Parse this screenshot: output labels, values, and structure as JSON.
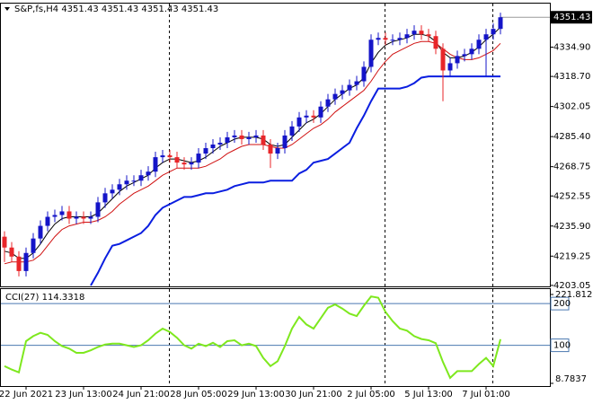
{
  "chart_data": [
    {
      "type": "candlestick",
      "title": "S&P,fs,H4  4351.43 4351.43 4351.43 4351.43",
      "categories": [
        null,
        null,
        null,
        "22 Jun 2021",
        null,
        null,
        null,
        null,
        null,
        null,
        null,
        "23 Jun 13:00",
        null,
        null,
        null,
        null,
        null,
        null,
        null,
        "24 Jun 21:00",
        null,
        null,
        null,
        null,
        null,
        null,
        null,
        "28 Jun 05:00",
        null,
        null,
        null,
        null,
        null,
        null,
        null,
        "29 Jun 13:00",
        null,
        null,
        null,
        null,
        null,
        null,
        null,
        "30 Jun 21:00",
        null,
        null,
        null,
        null,
        null,
        null,
        null,
        "2 Jul 05:00",
        null,
        null,
        null,
        null,
        null,
        null,
        null,
        "5 Jul 13:00",
        null,
        null,
        null,
        null,
        null,
        null,
        null,
        "7 Jul 01:00",
        null,
        null
      ],
      "open": [
        4230,
        4224,
        4219,
        4211,
        4221,
        4229,
        4236,
        4241,
        4242,
        4244,
        4240,
        4241,
        4240,
        4241,
        4249,
        4254,
        4256,
        4259,
        4261,
        4261,
        4264,
        4266,
        4274,
        4275,
        4274,
        4271,
        4270,
        4271,
        4276,
        4279,
        4281,
        4282,
        4285,
        4286,
        4284,
        4285,
        4286,
        4281,
        4276,
        4279,
        4286,
        4291,
        4296,
        4297,
        4296,
        4302,
        4306,
        4309,
        4311,
        4314,
        4316,
        4324,
        4339,
        4340,
        4339,
        4339,
        4340,
        4342,
        4344,
        4342,
        4341,
        4334,
        4322,
        4326,
        4330,
        4331,
        4334,
        4339,
        4342,
        4345
      ],
      "high": [
        4233,
        4227,
        4222,
        4224,
        4232,
        4239,
        4244,
        4245,
        4247,
        4247,
        4244,
        4244,
        4244,
        4252,
        4257,
        4259,
        4262,
        4264,
        4264,
        4267,
        4269,
        4277,
        4278,
        4278,
        4277,
        4274,
        4274,
        4279,
        4282,
        4284,
        4285,
        4288,
        4289,
        4289,
        4288,
        4289,
        4289,
        4284,
        4282,
        4289,
        4294,
        4299,
        4300,
        4300,
        4305,
        4309,
        4312,
        4314,
        4317,
        4319,
        4327,
        4342,
        4343,
        4343,
        4342,
        4343,
        4345,
        4347,
        4347,
        4345,
        4344,
        4337,
        4329,
        4333,
        4334,
        4337,
        4342,
        4345,
        4348,
        4354
      ],
      "low": [
        4216,
        4216,
        4208,
        4208,
        4218,
        4226,
        4233,
        4238,
        4239,
        4237,
        4237,
        4237,
        4237,
        4238,
        4246,
        4251,
        4253,
        4256,
        4258,
        4258,
        4261,
        4263,
        4271,
        4271,
        4268,
        4267,
        4267,
        4268,
        4273,
        4276,
        4278,
        4279,
        4282,
        4281,
        4281,
        4282,
        4278,
        4268,
        4273,
        4276,
        4283,
        4288,
        4293,
        4293,
        4293,
        4299,
        4303,
        4306,
        4308,
        4311,
        4313,
        4321,
        4336,
        4336,
        4336,
        4336,
        4337,
        4339,
        4339,
        4338,
        4331,
        4305,
        4319,
        4323,
        4327,
        4328,
        4331,
        4319,
        4339,
        4342
      ],
      "close": [
        4224,
        4219,
        4211,
        4221,
        4229,
        4236,
        4241,
        4242,
        4244,
        4240,
        4241,
        4240,
        4241,
        4249,
        4254,
        4256,
        4259,
        4261,
        4261,
        4264,
        4266,
        4274,
        4275,
        4274,
        4271,
        4270,
        4271,
        4276,
        4279,
        4281,
        4282,
        4285,
        4286,
        4284,
        4285,
        4286,
        4281,
        4276,
        4279,
        4286,
        4291,
        4296,
        4297,
        4296,
        4302,
        4306,
        4309,
        4311,
        4314,
        4316,
        4324,
        4339,
        4340,
        4339,
        4339,
        4340,
        4342,
        4344,
        4342,
        4341,
        4334,
        4322,
        4326,
        4330,
        4331,
        4334,
        4339,
        4342,
        4345,
        4351.43
      ],
      "up_color": "#1414c8",
      "down_color": "#e8262a",
      "series": [
        {
          "color": "#000000",
          "values": [
            4222,
            4221,
            4218,
            4218,
            4221,
            4226,
            4232,
            4237,
            4240,
            4241,
            4241,
            4241,
            4241,
            4243,
            4247,
            4251,
            4255,
            4258,
            4260,
            4262,
            4264,
            4268,
            4271,
            4273,
            4273,
            4272,
            4271,
            4272,
            4274,
            4277,
            4280,
            4282,
            4284,
            4285,
            4285,
            4285,
            4284,
            4281,
            4280,
            4281,
            4285,
            4289,
            4293,
            4295,
            4298,
            4302,
            4306,
            4309,
            4312,
            4314,
            4318,
            4326,
            4332,
            4336,
            4338,
            4339,
            4340,
            4342,
            4342,
            4341,
            4338,
            4332,
            4329,
            4329,
            4330,
            4332,
            4335,
            4339,
            4342,
            4346
          ]
        },
        {
          "color": "#d01010",
          "values": [
            4215,
            4216,
            4216,
            4216,
            4217,
            4220,
            4225,
            4230,
            4234,
            4236,
            4237,
            4238,
            4238,
            4239,
            4241,
            4244,
            4248,
            4251,
            4254,
            4256,
            4258,
            4261,
            4264,
            4266,
            4268,
            4268,
            4268,
            4268,
            4269,
            4271,
            4273,
            4276,
            4278,
            4280,
            4281,
            4281,
            4281,
            4280,
            4279,
            4279,
            4281,
            4284,
            4287,
            4290,
            4292,
            4295,
            4299,
            4302,
            4305,
            4308,
            4311,
            4316,
            4322,
            4327,
            4331,
            4333,
            4335,
            4337,
            4338,
            4338,
            4337,
            4334,
            4331,
            4329,
            4328,
            4328,
            4329,
            4331,
            4333,
            4337
          ]
        },
        {
          "color": "#0a1ee0",
          "values": [
            null,
            null,
            null,
            null,
            null,
            null,
            null,
            null,
            null,
            null,
            null,
            null,
            4203,
            4210,
            4218,
            4225,
            4226,
            4228,
            4230,
            4232,
            4236,
            4242,
            4246,
            4248,
            4250,
            4252,
            4252,
            4253,
            4254,
            4254,
            4255,
            4256,
            4258,
            4259,
            4260,
            4260,
            4260,
            4261,
            4261,
            4261,
            4261,
            4265,
            4267,
            4271,
            4272,
            4273,
            4276,
            4279,
            4282,
            4290,
            4297,
            4305,
            4312,
            4312,
            4312,
            4312,
            4313,
            4315,
            4318,
            4318.7,
            4318.7,
            4318.7,
            4318.7,
            4318.7,
            4318.7,
            4318.7,
            4318.7,
            4318.7,
            4318.7,
            4318.7
          ]
        }
      ],
      "ylim": [
        4202.5,
        4359
      ],
      "yticks": [
        4351.43,
        {
          "value": 4334.9,
          "label": "4334.90"
        },
        {
          "value": 4318.7,
          "label": "4318.70"
        },
        4302.05,
        {
          "value": 4285.4,
          "label": "4285.40"
        },
        4268.75,
        4252.55,
        {
          "value": 4235.9,
          "label": "4235.90"
        },
        4219.25,
        4203.05
      ]
    },
    {
      "type": "line",
      "title": "CCI(27) 114.3318",
      "color": "#7ee81e",
      "values": [
        50,
        42,
        35,
        110,
        122,
        130,
        125,
        110,
        98,
        92,
        82,
        82,
        88,
        96,
        102,
        104,
        104,
        100,
        96,
        100,
        112,
        128,
        140,
        132,
        118,
        100,
        92,
        104,
        98,
        106,
        96,
        110,
        112,
        100,
        104,
        98,
        70,
        50,
        62,
        98,
        140,
        168,
        150,
        140,
        165,
        190,
        198,
        188,
        176,
        170,
        195,
        217,
        214,
        180,
        158,
        140,
        135,
        122,
        115,
        112,
        105,
        60,
        22,
        38,
        38,
        38,
        55,
        70,
        50,
        114.3318
      ],
      "ylim": [
        8.7837,
        221.812
      ],
      "yticks": [
        221.812,
        8.7837
      ],
      "levels": [
        200,
        100
      ],
      "level_color": "#4a78b0"
    }
  ]
}
